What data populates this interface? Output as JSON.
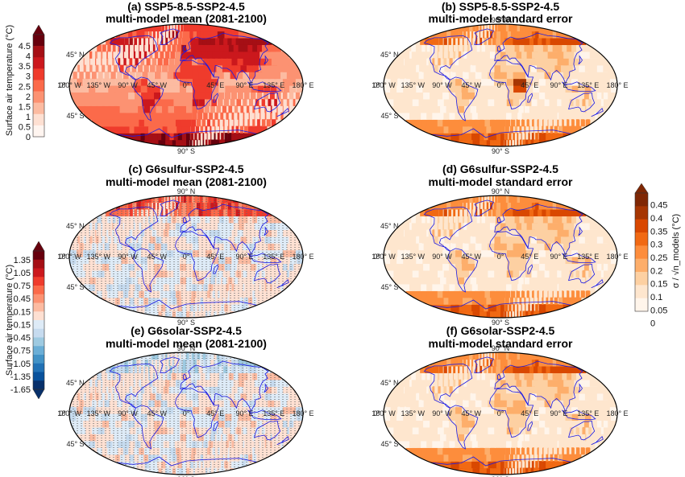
{
  "panels": [
    {
      "id": "a",
      "title1": "(a) SSP5-8.5-SSP2-4.5",
      "title2": "multi-model mean (2081-2100)",
      "scheme": "warm",
      "level": 0.62,
      "stipple": false
    },
    {
      "id": "b",
      "title1": "(b) SSP5-8.5-SSP2-4.5",
      "title2": "multi-model standard error",
      "scheme": "oranges",
      "level": 0.32,
      "stipple": false
    },
    {
      "id": "c",
      "title1": "(c) G6sulfur-SSP2-4.5",
      "title2": "multi-model mean (2081-2100)",
      "scheme": "diverging",
      "level": 0.5,
      "stipple": true
    },
    {
      "id": "d",
      "title1": "(d) G6sulfur-SSP2-4.5",
      "title2": "multi-model standard error",
      "scheme": "oranges",
      "level": 0.36,
      "stipple": false
    },
    {
      "id": "e",
      "title1": "(e) G6solar-SSP2-4.5",
      "title2": "multi-model mean (2081-2100)",
      "scheme": "diverging",
      "level": 0.5,
      "stipple": true
    },
    {
      "id": "f",
      "title1": "(f) G6solar-SSP2-4.5",
      "title2": "multi-model standard error",
      "scheme": "oranges",
      "level": 0.3,
      "stipple": false
    }
  ],
  "map_ticks": {
    "lon": [
      "180° W",
      "135° W",
      "90° W",
      "45° W",
      "0°",
      "45° E",
      "90° E",
      "135° E",
      "180° E"
    ],
    "lat": [
      "90° N",
      "45° N",
      "0°",
      "45° S",
      "90° S"
    ]
  },
  "colorbars": [
    {
      "id": "mean-top",
      "label": "Surface air temperature (°C)",
      "ticks": [
        "4.5",
        "4",
        "3.5",
        "3",
        "2.5",
        "2",
        "1.5",
        "1",
        "0.5",
        "0"
      ],
      "colors": [
        "#fff5f0",
        "#fee0d2",
        "#fcbba1",
        "#fc9272",
        "#fb6a4a",
        "#ef3b2c",
        "#cb181d",
        "#a50f15",
        "#67000d"
      ],
      "over_color": "#67000d"
    },
    {
      "id": "mean-bottom",
      "label": "Surface air temperature (°C)",
      "ticks": [
        "1.35",
        "1.05",
        "0.75",
        "0.45",
        "0.15",
        "-0.15",
        "-0.45",
        "-0.75",
        "-1.05",
        "-1.35",
        "-1.65"
      ],
      "colors": [
        "#08306b",
        "#08519c",
        "#2171b5",
        "#4292c6",
        "#6baed6",
        "#9ecae1",
        "#c6dbef",
        "#deebf7",
        "#fee0d2",
        "#fcbba1",
        "#fc9272",
        "#fb6a4a",
        "#ef3b2c",
        "#cb181d",
        "#a50f15",
        "#67000d"
      ],
      "over_color": "#67000d",
      "under_color": "#08306b"
    },
    {
      "id": "stderr",
      "label": "σ / √n_models (°C)",
      "ticks": [
        "0.45",
        "0.4",
        "0.35",
        "0.3",
        "0.25",
        "0.2",
        "0.15",
        "0.1",
        "0.05",
        "0"
      ],
      "colors": [
        "#fff5eb",
        "#fee6ce",
        "#fdd0a2",
        "#fdae6b",
        "#fd8d3c",
        "#f16913",
        "#d94801",
        "#a63603",
        "#7f2704"
      ],
      "over_color": "#7f2704"
    }
  ],
  "colors": {
    "coastline": "#1a1ae6",
    "map_border": "#000000",
    "stipple": "#555555"
  }
}
